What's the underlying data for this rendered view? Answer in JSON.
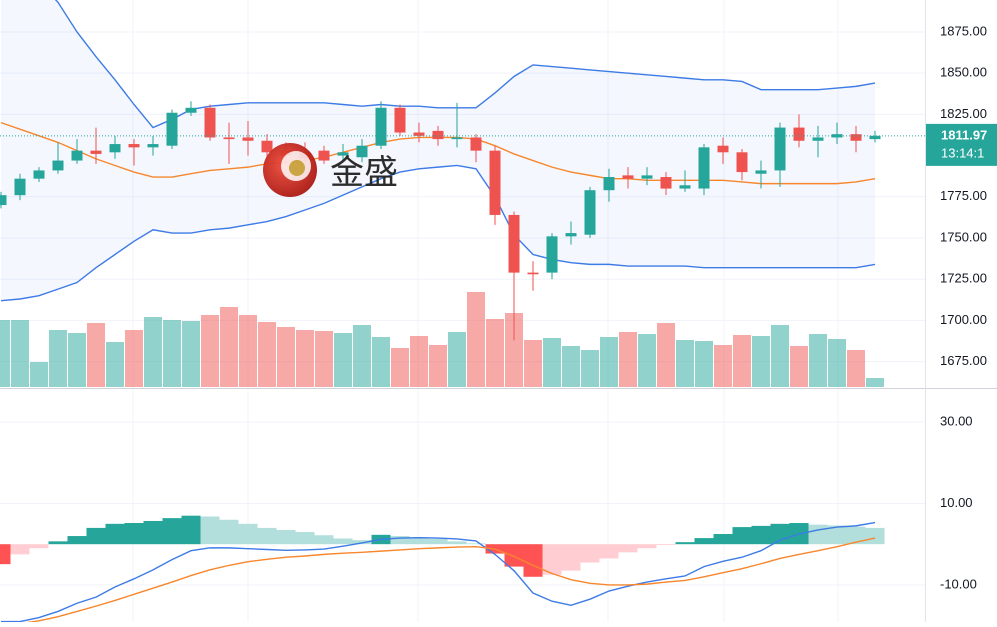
{
  "chart_data": [
    {
      "type": "candlestick",
      "open": [
        1770,
        1776,
        1786,
        1791,
        1797,
        1803,
        1802,
        1807,
        1805,
        1806,
        1826,
        1829,
        1811,
        1811,
        1809,
        1803,
        1802,
        1803,
        1800,
        1799,
        1806,
        1829,
        1814,
        1815,
        1810,
        1811,
        1803,
        1764,
        1729,
        1729,
        1751,
        1752,
        1779,
        1788,
        1786,
        1787,
        1780,
        1780,
        1806,
        1802,
        1789,
        1791,
        1817,
        1809,
        1811,
        1813,
        1810
      ],
      "high": [
        1778,
        1789,
        1793,
        1808,
        1810,
        1817,
        1812,
        1810,
        1812,
        1828,
        1833,
        1831,
        1820,
        1821,
        1813,
        1808,
        1808,
        1806,
        1807,
        1810,
        1833,
        1831,
        1820,
        1818,
        1832,
        1813,
        1806,
        1766,
        1736,
        1753,
        1760,
        1781,
        1792,
        1793,
        1793,
        1790,
        1791,
        1807,
        1811,
        1804,
        1797,
        1820,
        1825,
        1818,
        1820,
        1818,
        1815
      ],
      "low": [
        1768,
        1773,
        1784,
        1789,
        1795,
        1795,
        1798,
        1794,
        1800,
        1804,
        1824,
        1809,
        1795,
        1800,
        1796,
        1794,
        1794,
        1795,
        1797,
        1796,
        1804,
        1812,
        1808,
        1806,
        1805,
        1796,
        1758,
        1688,
        1718,
        1725,
        1746,
        1750,
        1772,
        1780,
        1782,
        1776,
        1778,
        1776,
        1795,
        1785,
        1780,
        1781,
        1805,
        1799,
        1807,
        1802,
        1808
      ],
      "close": [
        1776,
        1786,
        1791,
        1797,
        1803,
        1801,
        1807,
        1805,
        1807,
        1826,
        1829,
        1811,
        1810,
        1809,
        1802,
        1800,
        1798,
        1797,
        1802,
        1806,
        1829,
        1814,
        1812,
        1810,
        1811,
        1803,
        1764,
        1729,
        1728,
        1751,
        1753,
        1779,
        1787,
        1786,
        1788,
        1780,
        1782,
        1805,
        1802,
        1790,
        1791,
        1817,
        1809,
        1811,
        1813,
        1809,
        1812
      ],
      "bollinger": {
        "upper": [
          1925,
          1915,
          1905,
          1893,
          1875,
          1860,
          1846,
          1831,
          1817,
          1822,
          1828,
          1830,
          1831,
          1832,
          1832,
          1832,
          1832,
          1832,
          1831,
          1830,
          1831,
          1830,
          1830,
          1829,
          1829,
          1829,
          1838,
          1848,
          1855,
          1854,
          1853,
          1852,
          1851,
          1850,
          1849,
          1848,
          1847,
          1846,
          1846,
          1845,
          1840,
          1840,
          1840,
          1840,
          1841,
          1842,
          1844
        ],
        "middle": [
          1820,
          1816,
          1812,
          1808,
          1803,
          1798,
          1794,
          1790,
          1787,
          1787,
          1789,
          1791,
          1792,
          1793,
          1795,
          1796,
          1797,
          1799,
          1802,
          1805,
          1808,
          1810,
          1811,
          1811,
          1811,
          1810,
          1806,
          1801,
          1797,
          1793,
          1790,
          1788,
          1786,
          1786,
          1785,
          1785,
          1785,
          1785,
          1785,
          1784,
          1783,
          1783,
          1783,
          1783,
          1783,
          1784,
          1786
        ],
        "lower": [
          1712,
          1713,
          1715,
          1719,
          1723,
          1732,
          1740,
          1748,
          1755,
          1753,
          1753,
          1755,
          1756,
          1758,
          1760,
          1763,
          1767,
          1771,
          1776,
          1781,
          1786,
          1790,
          1792,
          1793,
          1794,
          1792,
          1775,
          1752,
          1740,
          1737,
          1735,
          1734,
          1734,
          1733,
          1733,
          1733,
          1733,
          1732,
          1732,
          1732,
          1732,
          1732,
          1732,
          1732,
          1732,
          1732,
          1734
        ]
      },
      "volume": [
        67,
        67,
        25,
        57,
        54,
        64,
        45,
        57,
        70,
        67,
        66,
        72,
        80,
        72,
        65,
        60,
        57,
        56,
        54,
        62,
        50,
        39,
        51,
        42,
        55,
        95,
        68,
        74,
        47,
        49,
        41,
        37,
        50,
        55,
        53,
        64,
        47,
        46,
        42,
        52,
        51,
        62,
        41,
        53,
        48,
        37,
        9
      ],
      "ylim": [
        1659,
        1894.4
      ],
      "yticks": [
        {
          "value": 1875,
          "label": "1875.00"
        },
        {
          "value": 1850,
          "label": "1850.00"
        },
        {
          "value": 1825,
          "label": "1825.00"
        },
        {
          "value": 1775,
          "label": "1775.00"
        },
        {
          "value": 1750,
          "label": "1750.00"
        },
        {
          "value": 1725,
          "label": "1725.00"
        },
        {
          "value": 1700,
          "label": "1700.00"
        },
        {
          "value": 1675,
          "label": "1675.00"
        }
      ],
      "last_price": 1811.97,
      "countdown": "13:14:1",
      "watermark": "金盛",
      "up_color": "#26a69a",
      "down_color": "#ef5350",
      "band_color": "#3d7be6",
      "middle_color": "#f7862d",
      "grid": true
    },
    {
      "type": "macd",
      "histogram": [
        -4.9,
        -2.5,
        -1,
        0.7,
        2,
        4,
        5,
        5.2,
        5.7,
        6.4,
        7,
        6.8,
        6,
        5,
        4,
        3.5,
        3,
        2.2,
        1.4,
        1,
        2.3,
        2,
        1.7,
        1.3,
        0.7,
        0.2,
        -2.3,
        -5.5,
        -8,
        -7.5,
        -6.5,
        -4.5,
        -3.5,
        -2,
        -1,
        -0.2,
        0.5,
        1.5,
        2.5,
        4.2,
        4.5,
        5,
        5.2,
        4.8,
        4.6,
        4.3,
        4
      ],
      "macd": [
        -19,
        -19,
        -18,
        -16.5,
        -14.5,
        -13,
        -10.5,
        -8.5,
        -6.3,
        -3.8,
        -1.6,
        -0.9,
        -0.9,
        -1.1,
        -1.3,
        -1.5,
        -1.4,
        -1.2,
        -0.5,
        0.3,
        1.2,
        1.5,
        1.6,
        1.5,
        1.3,
        0.8,
        -2.5,
        -6.5,
        -12,
        -14,
        -15,
        -13.5,
        -11.5,
        -10.3,
        -9.3,
        -8.5,
        -7.8,
        -5.5,
        -4.2,
        -3.2,
        -1.6,
        1,
        2.5,
        3.5,
        4.2,
        4.5,
        5.3
      ],
      "signal": [
        -20,
        -19.5,
        -18.8,
        -17.8,
        -16.5,
        -15.2,
        -13.8,
        -12.3,
        -10.8,
        -9.3,
        -7.7,
        -6.3,
        -5.2,
        -4.3,
        -3.7,
        -3.2,
        -2.9,
        -2.5,
        -2.2,
        -2,
        -1.7,
        -1.4,
        -1.1,
        -0.9,
        -0.7,
        -0.6,
        -1.2,
        -3,
        -5.2,
        -7.2,
        -8.7,
        -9.6,
        -10,
        -10,
        -9.8,
        -9.3,
        -8.9,
        -8,
        -7,
        -6,
        -4.8,
        -3.5,
        -2.5,
        -1.6,
        -0.6,
        0.5,
        1.5
      ],
      "ylim": [
        -19.1,
        38.1
      ],
      "yticks": [
        {
          "value": 30,
          "label": "30.00"
        },
        {
          "value": 10,
          "label": "10.00"
        },
        {
          "value": -10,
          "label": "-10.00"
        }
      ],
      "macd_color": "#3d7be6",
      "signal_color": "#f7862d",
      "grow_up_color": "#26a69a",
      "fall_up_color": "#b2dfdb",
      "grow_down_color": "#ff5252",
      "fall_down_color": "#ffcdd2"
    }
  ]
}
